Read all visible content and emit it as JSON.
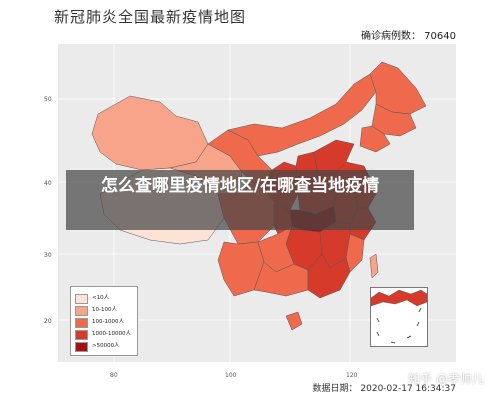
{
  "title": "新冠肺炎全国最新疫情地图",
  "confirmed_cases_label": "确诊病例数： 70640",
  "data_date_label": "数据日期： 2020-02-17 16:34:37",
  "banner_text": "怎么查哪里疫情地区/在哪查当地疫情",
  "watermark": "知乎 @孝帅儿",
  "axes": {
    "y_ticks": [
      "50",
      "40",
      "30",
      "20"
    ],
    "x_ticks": [
      "80",
      "100",
      "120"
    ]
  },
  "legend": {
    "items": [
      {
        "label": "<10人",
        "color": "#fde3d6"
      },
      {
        "label": "10-100人",
        "color": "#f7a48a"
      },
      {
        "label": "100-1000人",
        "color": "#ef6a4d"
      },
      {
        "label": "1000-10000人",
        "color": "#d63a2a"
      },
      {
        "label": ">50000人",
        "color": "#a50f15"
      }
    ]
  },
  "colors": {
    "plot_background": "#ebebeb",
    "province_border": "#555555"
  }
}
